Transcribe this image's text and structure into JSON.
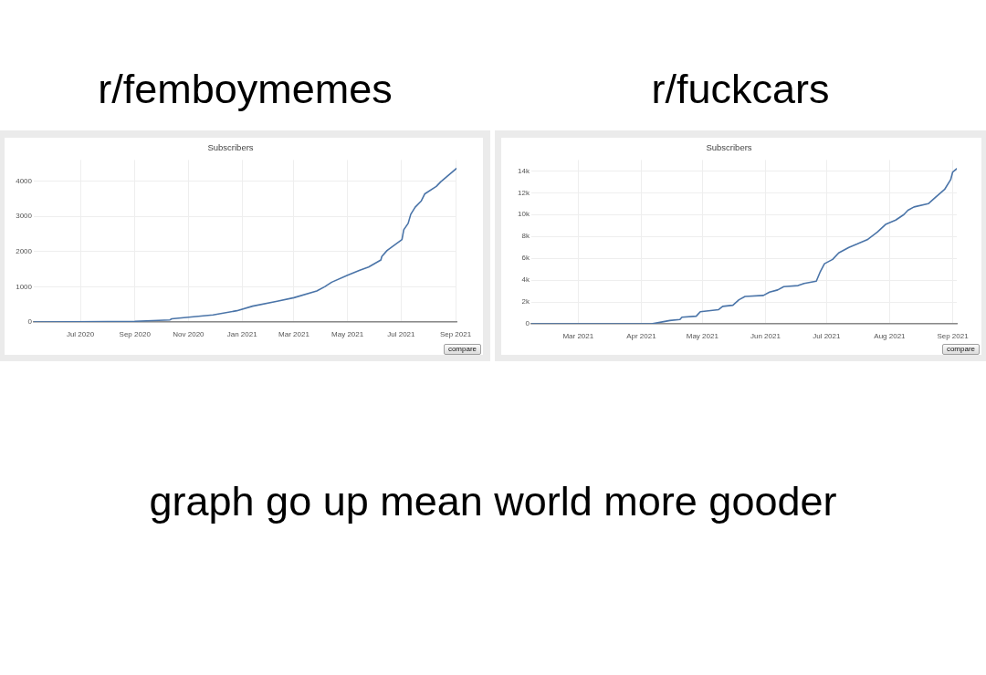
{
  "chart_data": [
    {
      "type": "line",
      "title": "r/femboymemes",
      "subtitle": "Subscribers",
      "x": [
        "2020-05-09",
        "2020-08-01",
        "2020-09-01",
        "2020-10-11",
        "2020-10-13",
        "2020-11-29",
        "2020-12-26",
        "2021-01-13",
        "2021-02-10",
        "2021-03-01",
        "2021-03-27",
        "2021-04-05",
        "2021-04-13",
        "2021-05-01",
        "2021-05-15",
        "2021-05-25",
        "2021-06-08",
        "2021-06-09",
        "2021-06-15",
        "2021-07-02",
        "2021-07-04",
        "2021-07-09",
        "2021-07-12",
        "2021-07-17",
        "2021-07-24",
        "2021-07-28",
        "2021-08-10",
        "2021-08-15",
        "2021-09-02"
      ],
      "series": [
        {
          "color": "#4a74a8",
          "values": [
            0,
            10,
            20,
            60,
            90,
            200,
            320,
            450,
            590,
            690,
            880,
            1000,
            1130,
            1330,
            1470,
            1560,
            1760,
            1860,
            2030,
            2340,
            2620,
            2800,
            3060,
            3260,
            3440,
            3640,
            3850,
            3980,
            4360
          ]
        }
      ],
      "xlim": [
        "2020-05-09",
        "2021-09-02"
      ],
      "xticks": [
        {
          "value": "2020-07-01",
          "label": "Jul 2020"
        },
        {
          "value": "2020-09-01",
          "label": "Sep 2020"
        },
        {
          "value": "2020-11-01",
          "label": "Nov 2020"
        },
        {
          "value": "2021-01-01",
          "label": "Jan 2021"
        },
        {
          "value": "2021-03-01",
          "label": "Mar 2021"
        },
        {
          "value": "2021-05-01",
          "label": "May 2021"
        },
        {
          "value": "2021-07-01",
          "label": "Jul 2021"
        },
        {
          "value": "2021-09-01",
          "label": "Sep 2021"
        }
      ],
      "ylim": [
        0,
        4600
      ],
      "yticks": [
        0,
        1000,
        2000,
        3000,
        4000
      ],
      "grid": true,
      "marker": "none",
      "annotations": [
        "compare"
      ]
    },
    {
      "type": "line",
      "title": "r/fuckcars",
      "subtitle": "Subscribers",
      "x": [
        "2021-02-06",
        "2021-04-06",
        "2021-04-12",
        "2021-04-15",
        "2021-04-20",
        "2021-04-21",
        "2021-04-28",
        "2021-04-30",
        "2021-05-09",
        "2021-05-11",
        "2021-05-16",
        "2021-05-19",
        "2021-05-22",
        "2021-05-31",
        "2021-06-03",
        "2021-06-07",
        "2021-06-10",
        "2021-06-17",
        "2021-06-20",
        "2021-06-26",
        "2021-06-28",
        "2021-06-30",
        "2021-07-04",
        "2021-07-07",
        "2021-07-12",
        "2021-07-16",
        "2021-07-21",
        "2021-07-26",
        "2021-07-30",
        "2021-08-04",
        "2021-08-08",
        "2021-08-10",
        "2021-08-13",
        "2021-08-20",
        "2021-08-23",
        "2021-08-28",
        "2021-08-31",
        "2021-09-01",
        "2021-09-03"
      ],
      "series": [
        {
          "color": "#4a74a8",
          "values": [
            0,
            0,
            200,
            300,
            400,
            600,
            700,
            1100,
            1300,
            1600,
            1700,
            2200,
            2500,
            2600,
            2900,
            3100,
            3400,
            3500,
            3700,
            3900,
            4800,
            5500,
            5900,
            6500,
            7000,
            7300,
            7700,
            8400,
            9100,
            9500,
            10000,
            10400,
            10700,
            11000,
            11500,
            12300,
            13200,
            13900,
            14200
          ]
        }
      ],
      "xlim": [
        "2021-02-06",
        "2021-09-03"
      ],
      "xticks": [
        {
          "value": "2021-03-01",
          "label": "Mar 2021"
        },
        {
          "value": "2021-04-01",
          "label": "Apr 2021"
        },
        {
          "value": "2021-05-01",
          "label": "May 2021"
        },
        {
          "value": "2021-06-01",
          "label": "Jun 2021"
        },
        {
          "value": "2021-07-01",
          "label": "Jul 2021"
        },
        {
          "value": "2021-08-01",
          "label": "Aug 2021"
        },
        {
          "value": "2021-09-01",
          "label": "Sep 2021"
        }
      ],
      "ylim": [
        0,
        15000
      ],
      "yticks": [
        0,
        {
          "value": 2000,
          "label": "2k"
        },
        {
          "value": 4000,
          "label": "4k"
        },
        {
          "value": 6000,
          "label": "6k"
        },
        {
          "value": 8000,
          "label": "8k"
        },
        {
          "value": 10000,
          "label": "10k"
        },
        {
          "value": 12000,
          "label": "12k"
        },
        {
          "value": 14000,
          "label": "14k"
        }
      ],
      "grid": true,
      "marker": "none",
      "annotations": [
        "compare"
      ]
    },
    {
      "type": "other",
      "title": "graph go up mean world more gooder"
    }
  ]
}
